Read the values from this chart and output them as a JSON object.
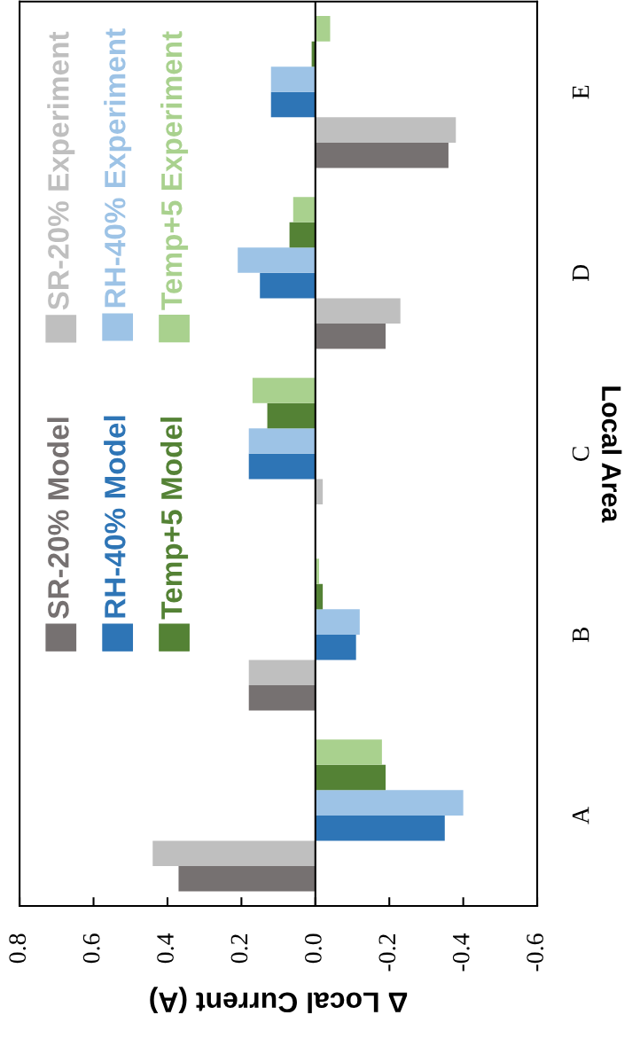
{
  "chart_data": {
    "type": "bar",
    "orientation": "horizontal",
    "xlabel": "Δ Local Current (A)",
    "ylabel": "Local Area",
    "categories": [
      "E",
      "D",
      "C",
      "B",
      "A"
    ],
    "series": [
      {
        "name": "SR-20% Model",
        "color": "#767171",
        "values": [
          -0.36,
          -0.19,
          0.0,
          0.18,
          0.37
        ]
      },
      {
        "name": "SR-20% Experiment",
        "color": "#bfbfbf",
        "values": [
          -0.38,
          -0.23,
          -0.02,
          0.18,
          0.44
        ]
      },
      {
        "name": "RH-40% Model",
        "color": "#2e75b6",
        "values": [
          0.12,
          0.15,
          0.18,
          -0.11,
          -0.35
        ]
      },
      {
        "name": "RH-40% Experiment",
        "color": "#9dc3e6",
        "values": [
          0.12,
          0.21,
          0.18,
          -0.12,
          -0.4
        ]
      },
      {
        "name": "Temp+5 Model",
        "color": "#548235",
        "values": [
          0.01,
          0.07,
          0.13,
          -0.02,
          -0.19
        ]
      },
      {
        "name": "Temp+5 Experiment",
        "color": "#a9d18e",
        "values": [
          -0.04,
          0.06,
          0.17,
          -0.01,
          -0.18
        ]
      }
    ],
    "xlim": [
      0.8,
      -0.6
    ],
    "xticks": [
      0.8,
      0.6,
      0.4,
      0.2,
      {
        "value": 0,
        "label": "0.0"
      },
      -0.2,
      -0.4,
      -0.6
    ],
    "ref_lines": [
      {
        "axis": "x",
        "value": 0,
        "color": "#000000"
      }
    ],
    "legend": "left",
    "grid": false
  }
}
